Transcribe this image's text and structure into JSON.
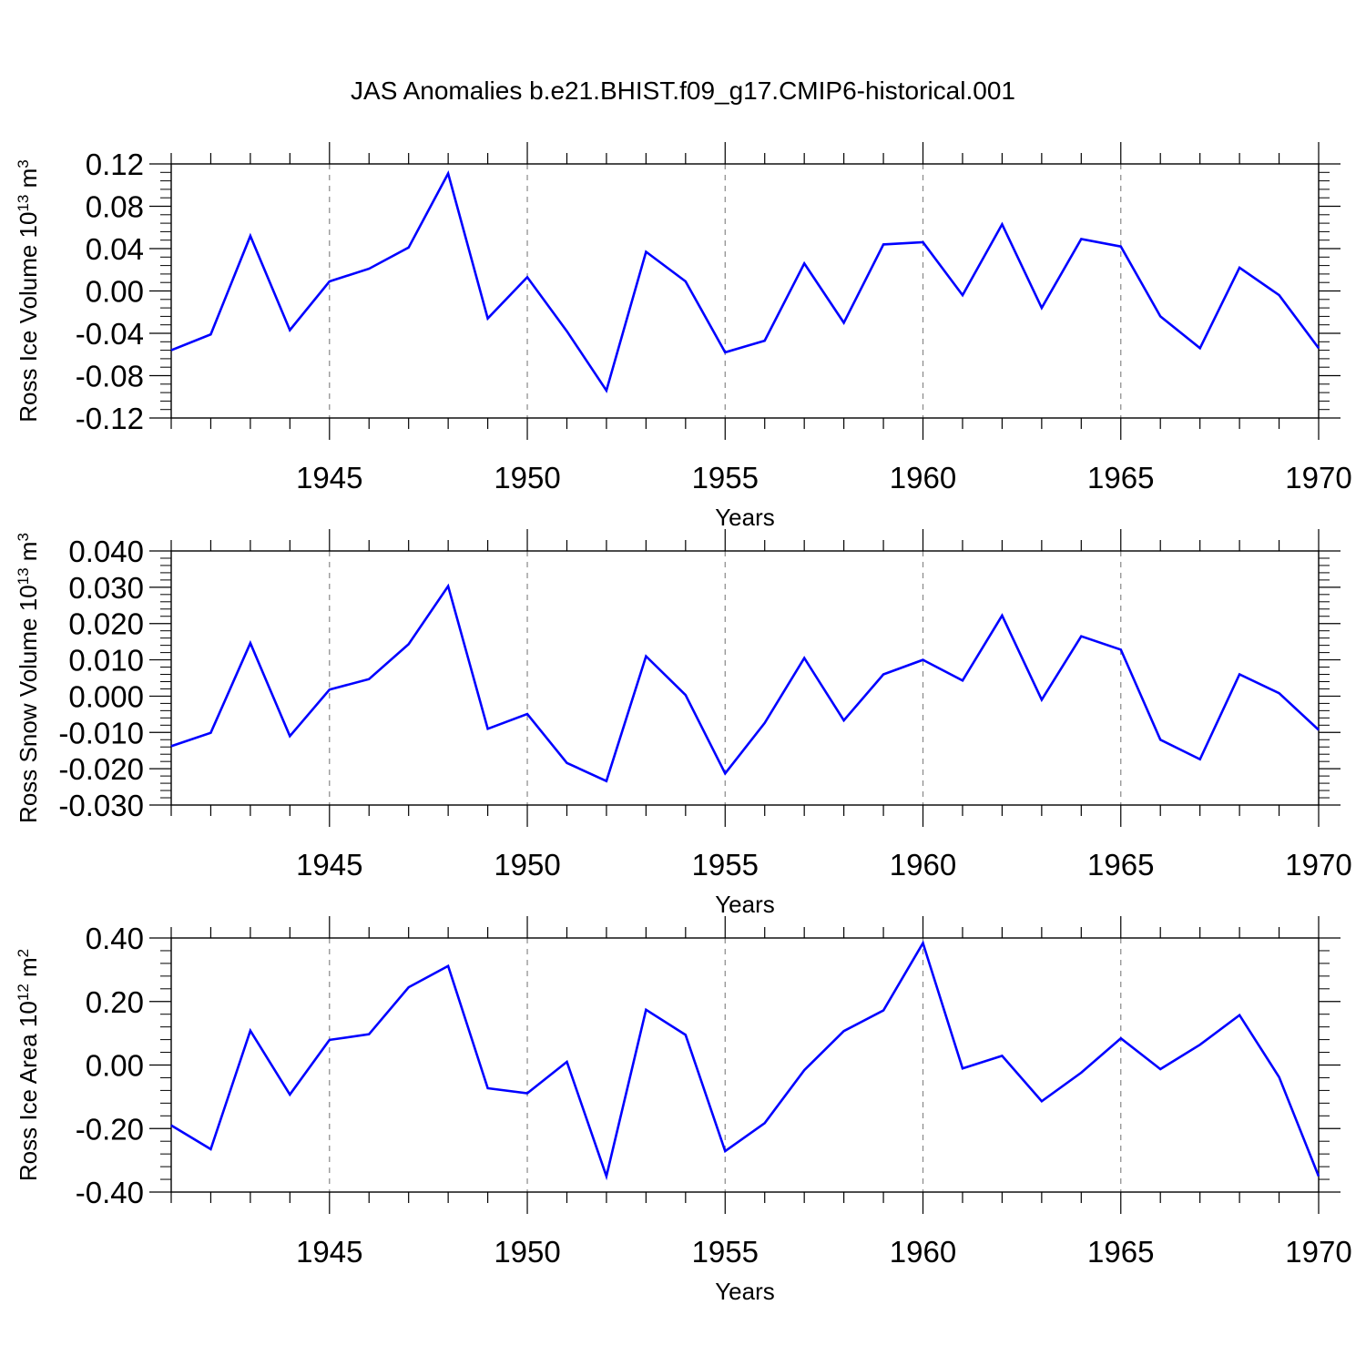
{
  "figure": {
    "title": "JAS Anomalies b.e21.BHIST.f09_g17.CMIP6-historical.001",
    "line_color": "#0000ff",
    "axis_color": "#000000",
    "grid_color": "#888888"
  },
  "chart_data": [
    {
      "type": "line",
      "ylabel": "Ross Ice Volume 10",
      "ylabel_exp": "13",
      "ylabel_unit": " m",
      "ylabel_unit_exp": "3",
      "xlabel": "Years",
      "xlim": [
        1941,
        1970
      ],
      "ylim": [
        -0.12,
        0.12
      ],
      "yticks": [
        -0.12,
        -0.08,
        -0.04,
        0.0,
        0.04,
        0.08,
        0.12
      ],
      "yticklabels": [
        "-0.12",
        "-0.08",
        "-0.04",
        "0.00",
        "0.04",
        "0.08",
        "0.12"
      ],
      "xticks": [
        1945,
        1950,
        1955,
        1960,
        1965,
        1970
      ],
      "xticklabels": [
        "1945",
        "1950",
        "1955",
        "1960",
        "1965",
        "1970"
      ],
      "grid": "vertical dashed at major x ticks",
      "series": [
        {
          "x": [
            1941,
            1942,
            1943,
            1944,
            1945,
            1946,
            1947,
            1948,
            1949,
            1950,
            1951,
            1952,
            1953,
            1954,
            1955,
            1956,
            1957,
            1958,
            1959,
            1960,
            1961,
            1962,
            1963,
            1964,
            1965,
            1966,
            1967,
            1968,
            1969,
            1970
          ],
          "values": [
            -0.056,
            -0.041,
            0.052,
            -0.037,
            0.009,
            0.021,
            0.041,
            0.111,
            -0.026,
            0.013,
            -0.038,
            -0.094,
            0.037,
            0.009,
            -0.058,
            -0.047,
            0.026,
            -0.03,
            0.044,
            0.046,
            -0.004,
            0.063,
            -0.016,
            0.049,
            0.042,
            -0.024,
            -0.054,
            0.022,
            -0.004,
            -0.054
          ]
        }
      ]
    },
    {
      "type": "line",
      "ylabel": "Ross Snow Volume 10",
      "ylabel_exp": "13",
      "ylabel_unit": " m",
      "ylabel_unit_exp": "3",
      "xlabel": "Years",
      "xlim": [
        1941,
        1970
      ],
      "ylim": [
        -0.03,
        0.04
      ],
      "yticks": [
        -0.03,
        -0.02,
        -0.01,
        0.0,
        0.01,
        0.02,
        0.03,
        0.04
      ],
      "yticklabels": [
        "-0.030",
        "-0.020",
        "-0.010",
        "0.000",
        "0.010",
        "0.020",
        "0.030",
        "0.040"
      ],
      "xticks": [
        1945,
        1950,
        1955,
        1960,
        1965,
        1970
      ],
      "xticklabels": [
        "1945",
        "1950",
        "1955",
        "1960",
        "1965",
        "1970"
      ],
      "grid": "vertical dashed at major x ticks",
      "series": [
        {
          "x": [
            1941,
            1942,
            1943,
            1944,
            1945,
            1946,
            1947,
            1948,
            1949,
            1950,
            1951,
            1952,
            1953,
            1954,
            1955,
            1956,
            1957,
            1958,
            1959,
            1960,
            1961,
            1962,
            1963,
            1964,
            1965,
            1966,
            1967,
            1968,
            1969,
            1970
          ],
          "values": [
            -0.0138,
            -0.0101,
            0.0146,
            -0.011,
            0.0018,
            0.0047,
            0.0143,
            0.0303,
            -0.009,
            -0.0049,
            -0.0184,
            -0.0234,
            0.011,
            0.0003,
            -0.0213,
            -0.0074,
            0.0105,
            -0.0067,
            0.006,
            0.01,
            0.0043,
            0.0222,
            -0.001,
            0.0165,
            0.0128,
            -0.012,
            -0.0174,
            0.006,
            0.0008,
            -0.0093
          ]
        }
      ]
    },
    {
      "type": "line",
      "ylabel": "Ross Ice Area 10",
      "ylabel_exp": "12",
      "ylabel_unit": " m",
      "ylabel_unit_exp": "2",
      "xlabel": "Years",
      "xlim": [
        1941,
        1970
      ],
      "ylim": [
        -0.4,
        0.4
      ],
      "yticks": [
        -0.4,
        -0.2,
        0.0,
        0.2,
        0.4
      ],
      "yticklabels": [
        "-0.40",
        "-0.20",
        "0.00",
        "0.20",
        "0.40"
      ],
      "xticks": [
        1945,
        1950,
        1955,
        1960,
        1965,
        1970
      ],
      "xticklabels": [
        "1945",
        "1950",
        "1955",
        "1960",
        "1965",
        "1970"
      ],
      "grid": "vertical dashed at major x ticks",
      "series": [
        {
          "x": [
            1941,
            1942,
            1943,
            1944,
            1945,
            1946,
            1947,
            1948,
            1949,
            1950,
            1951,
            1952,
            1953,
            1954,
            1955,
            1956,
            1957,
            1958,
            1959,
            1960,
            1961,
            1962,
            1963,
            1964,
            1965,
            1966,
            1967,
            1968,
            1969,
            1970
          ],
          "values": [
            -0.19,
            -0.265,
            0.108,
            -0.093,
            0.079,
            0.097,
            0.245,
            0.312,
            -0.073,
            -0.089,
            0.01,
            -0.35,
            0.174,
            0.095,
            -0.271,
            -0.183,
            -0.016,
            0.107,
            0.172,
            0.384,
            -0.011,
            0.029,
            -0.114,
            -0.024,
            0.084,
            -0.013,
            0.064,
            0.157,
            -0.038,
            -0.35
          ]
        }
      ]
    }
  ]
}
